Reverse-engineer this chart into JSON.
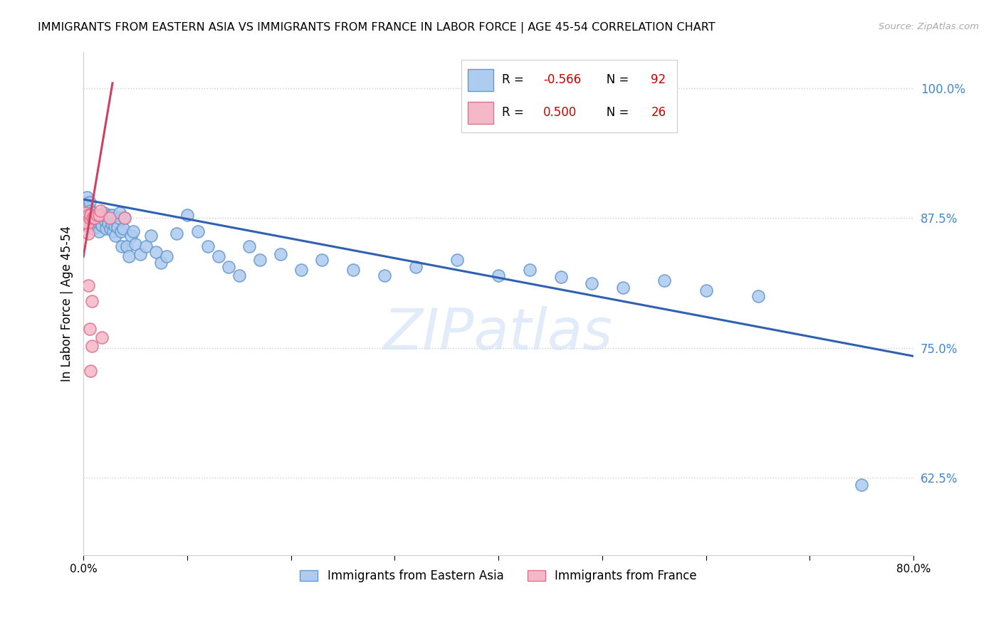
{
  "title": "IMMIGRANTS FROM EASTERN ASIA VS IMMIGRANTS FROM FRANCE IN LABOR FORCE | AGE 45-54 CORRELATION CHART",
  "source": "Source: ZipAtlas.com",
  "ylabel": "In Labor Force | Age 45-54",
  "xlim": [
    0.0,
    0.8
  ],
  "ylim": [
    0.55,
    1.035
  ],
  "yticks": [
    0.625,
    0.75,
    0.875,
    1.0
  ],
  "ytick_labels": [
    "62.5%",
    "75.0%",
    "87.5%",
    "100.0%"
  ],
  "xticks": [
    0.0,
    0.1,
    0.2,
    0.3,
    0.4,
    0.5,
    0.6,
    0.7,
    0.8
  ],
  "xtick_labels": [
    "0.0%",
    "",
    "",
    "",
    "",
    "",
    "",
    "",
    "80.0%"
  ],
  "blue_R": "-0.566",
  "blue_N": "92",
  "pink_R": "0.500",
  "pink_N": "26",
  "blue_fill_color": "#aecbf0",
  "pink_fill_color": "#f5b8c8",
  "blue_edge_color": "#6699cc",
  "pink_edge_color": "#e07090",
  "blue_line_color": "#3060b0",
  "pink_line_color": "#d04060",
  "watermark": "ZIPatlas",
  "legend_label_blue": "Immigrants from Eastern Asia",
  "legend_label_pink": "Immigrants from France",
  "blue_scatter_x": [
    0.001,
    0.002,
    0.002,
    0.003,
    0.003,
    0.003,
    0.004,
    0.004,
    0.004,
    0.005,
    0.005,
    0.005,
    0.006,
    0.006,
    0.006,
    0.007,
    0.007,
    0.007,
    0.008,
    0.008,
    0.009,
    0.009,
    0.01,
    0.01,
    0.011,
    0.011,
    0.012,
    0.012,
    0.013,
    0.014,
    0.015,
    0.015,
    0.016,
    0.017,
    0.018,
    0.019,
    0.02,
    0.021,
    0.022,
    0.023,
    0.024,
    0.025,
    0.026,
    0.027,
    0.028,
    0.029,
    0.03,
    0.031,
    0.032,
    0.033,
    0.034,
    0.035,
    0.036,
    0.037,
    0.038,
    0.04,
    0.042,
    0.044,
    0.046,
    0.048,
    0.05,
    0.055,
    0.06,
    0.065,
    0.07,
    0.075,
    0.08,
    0.09,
    0.1,
    0.11,
    0.12,
    0.13,
    0.14,
    0.15,
    0.16,
    0.17,
    0.19,
    0.21,
    0.23,
    0.26,
    0.29,
    0.32,
    0.36,
    0.4,
    0.43,
    0.46,
    0.49,
    0.52,
    0.56,
    0.6,
    0.65,
    0.75
  ],
  "blue_scatter_y": [
    0.88,
    0.875,
    0.89,
    0.882,
    0.87,
    0.895,
    0.88,
    0.87,
    0.888,
    0.878,
    0.868,
    0.885,
    0.88,
    0.872,
    0.89,
    0.878,
    0.868,
    0.882,
    0.875,
    0.865,
    0.88,
    0.872,
    0.875,
    0.865,
    0.878,
    0.87,
    0.876,
    0.866,
    0.875,
    0.878,
    0.87,
    0.862,
    0.875,
    0.87,
    0.868,
    0.875,
    0.88,
    0.872,
    0.865,
    0.875,
    0.87,
    0.878,
    0.865,
    0.87,
    0.878,
    0.862,
    0.868,
    0.858,
    0.872,
    0.866,
    0.875,
    0.88,
    0.862,
    0.848,
    0.865,
    0.875,
    0.848,
    0.838,
    0.858,
    0.862,
    0.85,
    0.84,
    0.848,
    0.858,
    0.842,
    0.832,
    0.838,
    0.86,
    0.878,
    0.862,
    0.848,
    0.838,
    0.828,
    0.82,
    0.848,
    0.835,
    0.84,
    0.825,
    0.835,
    0.825,
    0.82,
    0.828,
    0.835,
    0.82,
    0.825,
    0.818,
    0.812,
    0.808,
    0.815,
    0.805,
    0.8,
    0.618
  ],
  "pink_scatter_x": [
    0.001,
    0.002,
    0.002,
    0.002,
    0.003,
    0.003,
    0.004,
    0.004,
    0.005,
    0.005,
    0.005,
    0.006,
    0.006,
    0.007,
    0.007,
    0.008,
    0.008,
    0.009,
    0.01,
    0.011,
    0.013,
    0.015,
    0.016,
    0.018,
    0.025,
    0.04
  ],
  "pink_scatter_y": [
    0.88,
    0.875,
    0.87,
    0.88,
    0.875,
    0.87,
    0.875,
    0.87,
    0.878,
    0.86,
    0.81,
    0.875,
    0.768,
    0.878,
    0.728,
    0.795,
    0.752,
    0.875,
    0.875,
    0.875,
    0.878,
    0.878,
    0.882,
    0.76,
    0.875,
    0.875
  ],
  "blue_trendline_x": [
    0.0,
    0.8
  ],
  "blue_trendline_y": [
    0.893,
    0.742
  ],
  "pink_trendline_x": [
    0.0,
    0.028
  ],
  "pink_trendline_y": [
    0.838,
    1.005
  ]
}
